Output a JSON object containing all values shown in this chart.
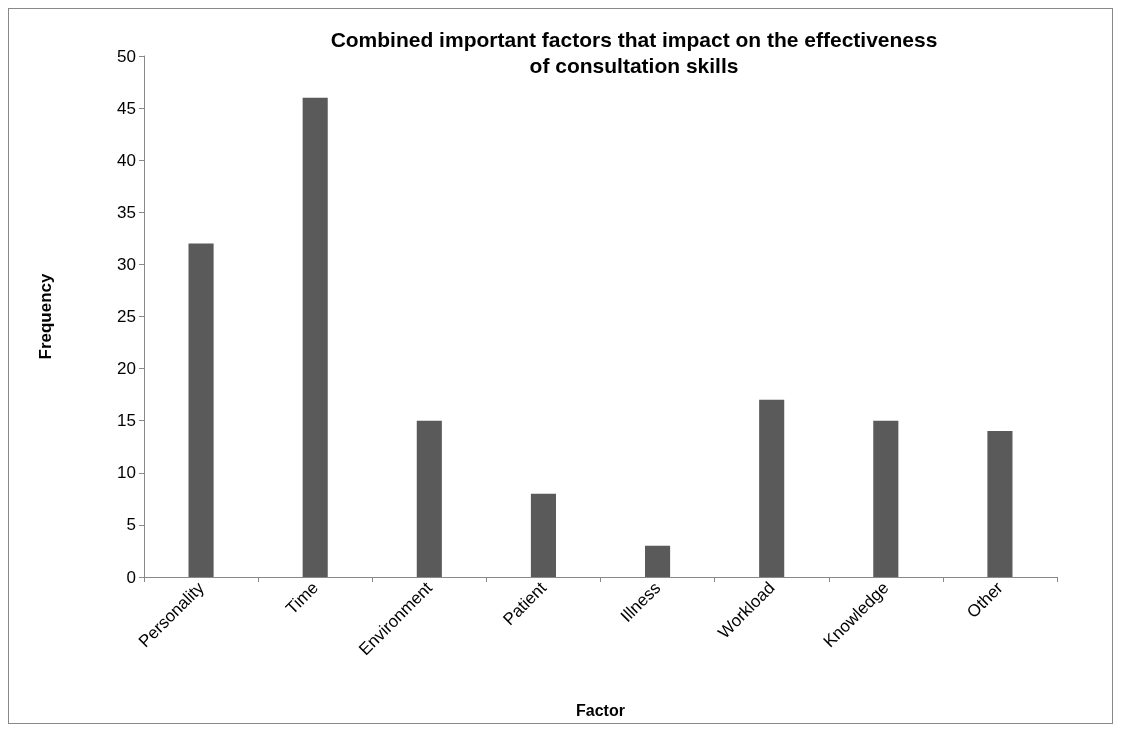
{
  "chart_data": {
    "type": "bar",
    "title": "Combined important factors that impact on the effectiveness\nof consultation skills",
    "xlabel": "Factor",
    "ylabel": "Frequency",
    "categories": [
      "Personality",
      "Time",
      "Environment",
      "Patient",
      "Illness",
      "Workload",
      "Knowledge",
      "Other"
    ],
    "values": [
      32,
      46,
      15,
      8,
      3,
      17,
      15,
      14
    ],
    "color": "#5a5a5a",
    "ylim": [
      0,
      50
    ],
    "yticks": [
      0,
      5,
      10,
      15,
      20,
      25,
      30,
      35,
      40,
      45,
      50
    ],
    "grid": false
  }
}
